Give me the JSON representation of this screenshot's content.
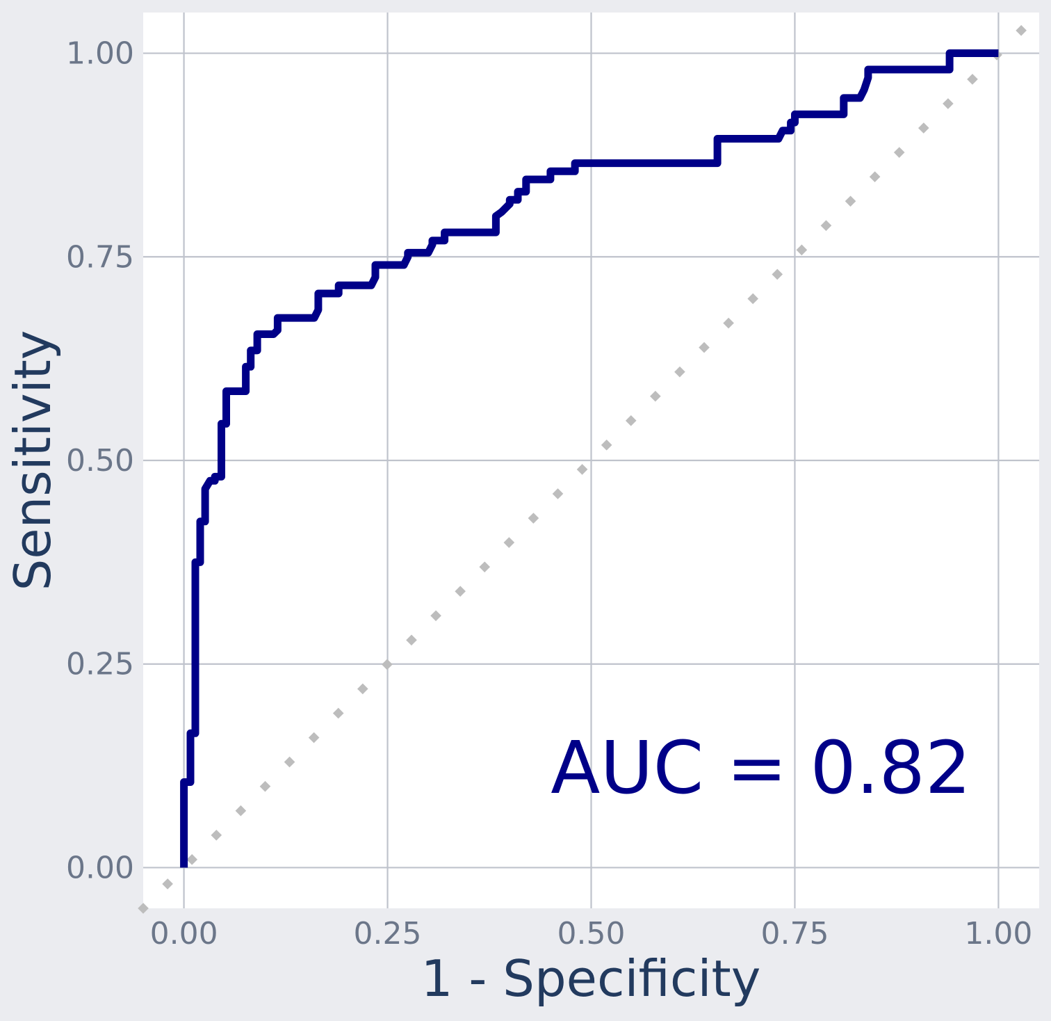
{
  "chart_data": {
    "type": "line",
    "xlabel": "1 - Specificity",
    "ylabel": "Sensitivity",
    "xlim": [
      -0.05,
      1.05
    ],
    "ylim": [
      -0.05,
      1.05
    ],
    "x_ticks": [
      0,
      0.25,
      0.5,
      0.75,
      1
    ],
    "y_ticks": [
      0,
      0.25,
      0.5,
      0.75,
      1
    ],
    "x_tick_labels": [
      "0.00",
      "0.25",
      "0.50",
      "0.75",
      "1.00"
    ],
    "y_tick_labels": [
      "0.00",
      "0.25",
      "0.50",
      "0.75",
      "1.00"
    ],
    "grid": true,
    "annotation": "AUC = 0.82",
    "colors": {
      "roc": "#000088",
      "diagonal": "#bdbdbd",
      "grid": "#bfc3cc",
      "panel": "#ffffff",
      "background": "#ebecf0"
    },
    "series": [
      {
        "style": "step",
        "x": [
          0,
          0,
          0.008,
          0.008,
          0.014,
          0.014,
          0.02,
          0.02,
          0.026,
          0.026,
          0.032,
          0.038,
          0.038,
          0.046,
          0.046,
          0.052,
          0.052,
          0.076,
          0.076,
          0.082,
          0.082,
          0.09,
          0.09,
          0.11,
          0.115,
          0.115,
          0.16,
          0.165,
          0.165,
          0.19,
          0.19,
          0.23,
          0.235,
          0.235,
          0.27,
          0.275,
          0.275,
          0.3,
          0.305,
          0.305,
          0.32,
          0.32,
          0.383,
          0.383,
          0.39,
          0.4,
          0.4,
          0.41,
          0.41,
          0.42,
          0.42,
          0.45,
          0.45,
          0.48,
          0.48,
          0.655,
          0.655,
          0.73,
          0.735,
          0.745,
          0.745,
          0.75,
          0.75,
          0.81,
          0.81,
          0.83,
          0.835,
          0.835,
          0.84,
          0.84,
          0.94,
          0.94,
          1
        ],
        "y": [
          0,
          0.105,
          0.105,
          0.165,
          0.165,
          0.375,
          0.375,
          0.425,
          0.425,
          0.465,
          0.475,
          0.475,
          0.48,
          0.48,
          0.545,
          0.545,
          0.585,
          0.585,
          0.615,
          0.615,
          0.635,
          0.635,
          0.655,
          0.655,
          0.66,
          0.675,
          0.675,
          0.685,
          0.705,
          0.705,
          0.715,
          0.715,
          0.725,
          0.74,
          0.74,
          0.75,
          0.755,
          0.755,
          0.765,
          0.77,
          0.77,
          0.78,
          0.78,
          0.8,
          0.805,
          0.815,
          0.82,
          0.82,
          0.83,
          0.83,
          0.845,
          0.845,
          0.855,
          0.855,
          0.865,
          0.865,
          0.895,
          0.895,
          0.905,
          0.905,
          0.915,
          0.915,
          0.925,
          0.925,
          0.945,
          0.945,
          0.955,
          0.955,
          0.97,
          0.98,
          0.98,
          1,
          1
        ]
      },
      {
        "style": "dotted",
        "x": [
          -0.05,
          1.05
        ],
        "y": [
          -0.05,
          1.05
        ]
      }
    ]
  }
}
